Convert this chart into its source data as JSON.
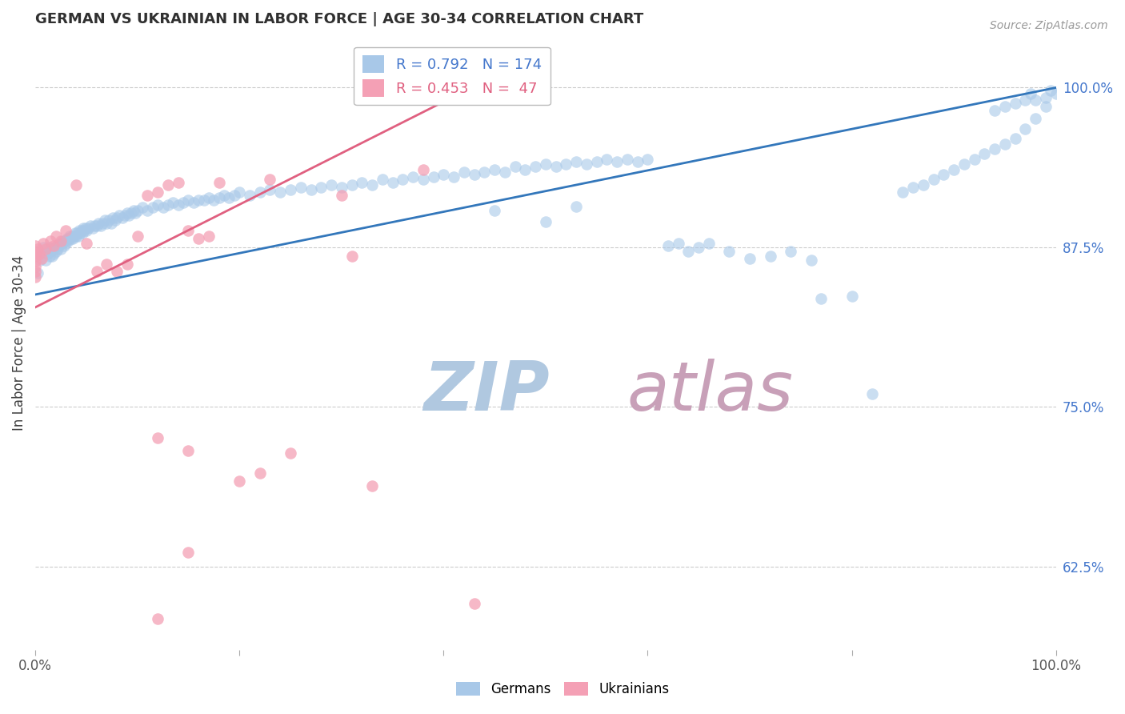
{
  "title": "GERMAN VS UKRAINIAN IN LABOR FORCE | AGE 30-34 CORRELATION CHART",
  "source": "Source: ZipAtlas.com",
  "ylabel": "In Labor Force | Age 30-34",
  "ytick_labels": [
    "62.5%",
    "75.0%",
    "87.5%",
    "100.0%"
  ],
  "ytick_values": [
    0.625,
    0.75,
    0.875,
    1.0
  ],
  "xlim": [
    0.0,
    1.0
  ],
  "ylim": [
    0.56,
    1.04
  ],
  "legend_blue_r": "0.792",
  "legend_blue_n": "174",
  "legend_pink_r": "0.453",
  "legend_pink_n": " 47",
  "german_color": "#A8C8E8",
  "ukrainian_color": "#F4A0B5",
  "german_line_color": "#3377BB",
  "ukrainian_line_color": "#E06080",
  "background_color": "#ffffff",
  "watermark_zip": "ZIP",
  "watermark_atlas": "atlas",
  "watermark_color_zip": "#b0c8e0",
  "watermark_color_atlas": "#c8a0b8",
  "grid_color": "#cccccc",
  "title_color": "#303030",
  "axis_label_color": "#404040",
  "right_tick_color": "#4477CC",
  "legend_box_color": "#eeeeee",
  "german_scatter": [
    [
      0.002,
      0.855
    ],
    [
      0.005,
      0.865
    ],
    [
      0.007,
      0.87
    ],
    [
      0.008,
      0.875
    ],
    [
      0.01,
      0.865
    ],
    [
      0.012,
      0.87
    ],
    [
      0.013,
      0.875
    ],
    [
      0.014,
      0.868
    ],
    [
      0.015,
      0.872
    ],
    [
      0.016,
      0.868
    ],
    [
      0.017,
      0.874
    ],
    [
      0.018,
      0.87
    ],
    [
      0.019,
      0.875
    ],
    [
      0.02,
      0.872
    ],
    [
      0.021,
      0.876
    ],
    [
      0.022,
      0.874
    ],
    [
      0.023,
      0.876
    ],
    [
      0.024,
      0.878
    ],
    [
      0.025,
      0.874
    ],
    [
      0.026,
      0.878
    ],
    [
      0.027,
      0.88
    ],
    [
      0.028,
      0.876
    ],
    [
      0.029,
      0.88
    ],
    [
      0.03,
      0.878
    ],
    [
      0.031,
      0.882
    ],
    [
      0.032,
      0.88
    ],
    [
      0.033,
      0.882
    ],
    [
      0.034,
      0.884
    ],
    [
      0.035,
      0.882
    ],
    [
      0.036,
      0.884
    ],
    [
      0.037,
      0.882
    ],
    [
      0.038,
      0.884
    ],
    [
      0.039,
      0.886
    ],
    [
      0.04,
      0.884
    ],
    [
      0.041,
      0.886
    ],
    [
      0.042,
      0.884
    ],
    [
      0.043,
      0.888
    ],
    [
      0.044,
      0.886
    ],
    [
      0.045,
      0.888
    ],
    [
      0.046,
      0.886
    ],
    [
      0.047,
      0.89
    ],
    [
      0.048,
      0.888
    ],
    [
      0.049,
      0.89
    ],
    [
      0.05,
      0.888
    ],
    [
      0.052,
      0.89
    ],
    [
      0.054,
      0.892
    ],
    [
      0.056,
      0.89
    ],
    [
      0.058,
      0.892
    ],
    [
      0.06,
      0.892
    ],
    [
      0.062,
      0.894
    ],
    [
      0.064,
      0.892
    ],
    [
      0.066,
      0.894
    ],
    [
      0.068,
      0.896
    ],
    [
      0.07,
      0.894
    ],
    [
      0.072,
      0.896
    ],
    [
      0.074,
      0.894
    ],
    [
      0.076,
      0.898
    ],
    [
      0.078,
      0.896
    ],
    [
      0.08,
      0.898
    ],
    [
      0.082,
      0.9
    ],
    [
      0.085,
      0.898
    ],
    [
      0.088,
      0.9
    ],
    [
      0.09,
      0.902
    ],
    [
      0.092,
      0.9
    ],
    [
      0.094,
      0.902
    ],
    [
      0.096,
      0.904
    ],
    [
      0.098,
      0.902
    ],
    [
      0.1,
      0.904
    ],
    [
      0.105,
      0.906
    ],
    [
      0.11,
      0.904
    ],
    [
      0.115,
      0.906
    ],
    [
      0.12,
      0.908
    ],
    [
      0.125,
      0.906
    ],
    [
      0.13,
      0.908
    ],
    [
      0.135,
      0.91
    ],
    [
      0.14,
      0.908
    ],
    [
      0.145,
      0.91
    ],
    [
      0.15,
      0.912
    ],
    [
      0.155,
      0.91
    ],
    [
      0.16,
      0.912
    ],
    [
      0.165,
      0.912
    ],
    [
      0.17,
      0.914
    ],
    [
      0.175,
      0.912
    ],
    [
      0.18,
      0.914
    ],
    [
      0.185,
      0.916
    ],
    [
      0.19,
      0.914
    ],
    [
      0.195,
      0.916
    ],
    [
      0.2,
      0.918
    ],
    [
      0.21,
      0.916
    ],
    [
      0.22,
      0.918
    ],
    [
      0.23,
      0.92
    ],
    [
      0.24,
      0.918
    ],
    [
      0.25,
      0.92
    ],
    [
      0.26,
      0.922
    ],
    [
      0.27,
      0.92
    ],
    [
      0.28,
      0.922
    ],
    [
      0.29,
      0.924
    ],
    [
      0.3,
      0.922
    ],
    [
      0.31,
      0.924
    ],
    [
      0.32,
      0.926
    ],
    [
      0.33,
      0.924
    ],
    [
      0.34,
      0.928
    ],
    [
      0.35,
      0.926
    ],
    [
      0.36,
      0.928
    ],
    [
      0.37,
      0.93
    ],
    [
      0.38,
      0.928
    ],
    [
      0.39,
      0.93
    ],
    [
      0.4,
      0.932
    ],
    [
      0.41,
      0.93
    ],
    [
      0.42,
      0.934
    ],
    [
      0.43,
      0.932
    ],
    [
      0.44,
      0.934
    ],
    [
      0.45,
      0.936
    ],
    [
      0.46,
      0.934
    ],
    [
      0.47,
      0.938
    ],
    [
      0.48,
      0.936
    ],
    [
      0.49,
      0.938
    ],
    [
      0.5,
      0.94
    ],
    [
      0.51,
      0.938
    ],
    [
      0.52,
      0.94
    ],
    [
      0.53,
      0.942
    ],
    [
      0.54,
      0.94
    ],
    [
      0.55,
      0.942
    ],
    [
      0.56,
      0.944
    ],
    [
      0.57,
      0.942
    ],
    [
      0.58,
      0.944
    ],
    [
      0.59,
      0.942
    ],
    [
      0.6,
      0.944
    ],
    [
      0.45,
      0.904
    ],
    [
      0.5,
      0.895
    ],
    [
      0.53,
      0.907
    ],
    [
      0.62,
      0.876
    ],
    [
      0.63,
      0.878
    ],
    [
      0.64,
      0.872
    ],
    [
      0.65,
      0.875
    ],
    [
      0.66,
      0.878
    ],
    [
      0.68,
      0.872
    ],
    [
      0.7,
      0.866
    ],
    [
      0.72,
      0.868
    ],
    [
      0.74,
      0.872
    ],
    [
      0.76,
      0.865
    ],
    [
      0.77,
      0.835
    ],
    [
      0.8,
      0.837
    ],
    [
      0.82,
      0.76
    ],
    [
      0.85,
      0.918
    ],
    [
      0.86,
      0.922
    ],
    [
      0.87,
      0.924
    ],
    [
      0.88,
      0.928
    ],
    [
      0.89,
      0.932
    ],
    [
      0.9,
      0.936
    ],
    [
      0.91,
      0.94
    ],
    [
      0.92,
      0.944
    ],
    [
      0.93,
      0.948
    ],
    [
      0.94,
      0.952
    ],
    [
      0.95,
      0.956
    ],
    [
      0.96,
      0.96
    ],
    [
      0.97,
      0.968
    ],
    [
      0.98,
      0.976
    ],
    [
      0.99,
      0.985
    ],
    [
      1.0,
      0.995
    ],
    [
      0.995,
      0.998
    ],
    [
      0.99,
      0.992
    ],
    [
      0.98,
      0.99
    ],
    [
      0.975,
      0.995
    ],
    [
      0.97,
      0.99
    ],
    [
      0.96,
      0.988
    ],
    [
      0.95,
      0.985
    ],
    [
      0.94,
      0.982
    ]
  ],
  "ukrainian_scatter": [
    [
      0.0,
      0.876
    ],
    [
      0.0,
      0.872
    ],
    [
      0.0,
      0.868
    ],
    [
      0.0,
      0.864
    ],
    [
      0.0,
      0.86
    ],
    [
      0.0,
      0.856
    ],
    [
      0.0,
      0.852
    ],
    [
      0.002,
      0.874
    ],
    [
      0.004,
      0.87
    ],
    [
      0.006,
      0.866
    ],
    [
      0.008,
      0.878
    ],
    [
      0.01,
      0.874
    ],
    [
      0.015,
      0.88
    ],
    [
      0.018,
      0.876
    ],
    [
      0.02,
      0.884
    ],
    [
      0.025,
      0.88
    ],
    [
      0.03,
      0.888
    ],
    [
      0.04,
      0.924
    ],
    [
      0.05,
      0.878
    ],
    [
      0.06,
      0.856
    ],
    [
      0.07,
      0.862
    ],
    [
      0.08,
      0.856
    ],
    [
      0.09,
      0.862
    ],
    [
      0.1,
      0.884
    ],
    [
      0.11,
      0.916
    ],
    [
      0.12,
      0.918
    ],
    [
      0.13,
      0.924
    ],
    [
      0.14,
      0.926
    ],
    [
      0.15,
      0.888
    ],
    [
      0.16,
      0.882
    ],
    [
      0.17,
      0.884
    ],
    [
      0.18,
      0.926
    ],
    [
      0.12,
      0.726
    ],
    [
      0.15,
      0.716
    ],
    [
      0.2,
      0.692
    ],
    [
      0.22,
      0.698
    ],
    [
      0.23,
      0.928
    ],
    [
      0.25,
      0.714
    ],
    [
      0.3,
      0.916
    ],
    [
      0.31,
      0.868
    ],
    [
      0.33,
      0.688
    ],
    [
      0.38,
      0.936
    ],
    [
      0.43,
      0.596
    ],
    [
      0.12,
      0.584
    ],
    [
      0.15,
      0.636
    ]
  ],
  "blue_line_x": [
    0.0,
    1.0
  ],
  "blue_line_y": [
    0.838,
    1.0
  ],
  "pink_line_x": [
    0.0,
    0.44
  ],
  "pink_line_y": [
    0.828,
    1.005
  ]
}
